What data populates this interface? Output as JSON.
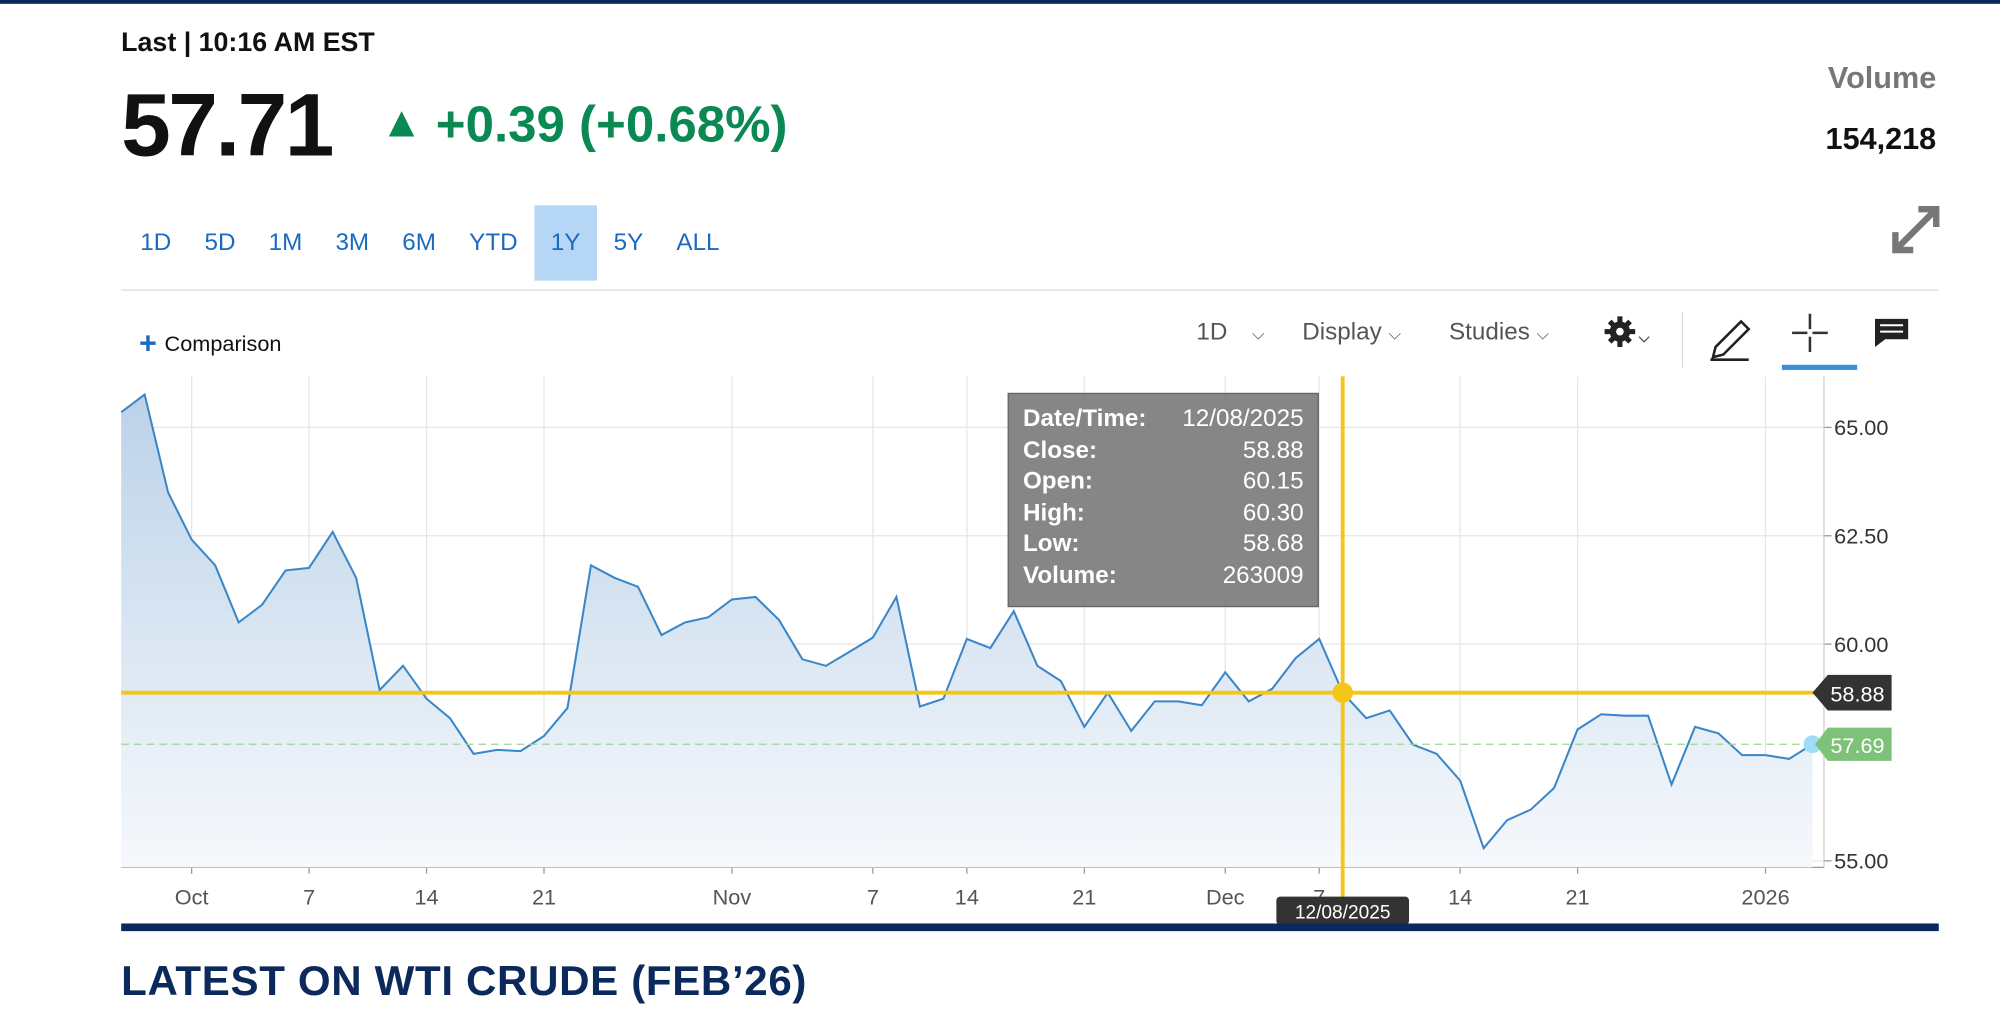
{
  "header": {
    "last_label": "Last",
    "time": "10:16 AM EST",
    "price": "57.71",
    "change": "+0.39 (+0.68%)",
    "volume_label": "Volume",
    "volume": "154,218"
  },
  "ranges": {
    "items": [
      "1D",
      "5D",
      "1M",
      "3M",
      "6M",
      "YTD",
      "1Y",
      "5Y",
      "ALL"
    ],
    "selected": 6
  },
  "toolbar": {
    "comparison": "Comparison",
    "interval": "1D",
    "display": "Display",
    "studies": "Studies"
  },
  "tooltip": {
    "rows": [
      [
        "Date/Time:",
        "12/08/2025"
      ],
      [
        "Close:",
        "58.88"
      ],
      [
        "Open:",
        "60.15"
      ],
      [
        "High:",
        "60.30"
      ],
      [
        "Low:",
        "58.68"
      ],
      [
        "Volume:",
        "263009"
      ]
    ]
  },
  "chart_data": {
    "type": "line",
    "color": "#3a86c8",
    "grid": true,
    "categories": [
      null,
      null,
      null,
      "Oct",
      null,
      null,
      null,
      null,
      "7",
      null,
      null,
      null,
      null,
      "14",
      null,
      null,
      null,
      null,
      "21",
      null,
      null,
      null,
      null,
      null,
      null,
      null,
      "Nov",
      null,
      null,
      null,
      null,
      null,
      "7",
      null,
      null,
      null,
      "14",
      null,
      null,
      null,
      null,
      "21",
      null,
      null,
      null,
      null,
      null,
      "Dec",
      null,
      null,
      null,
      "7",
      null,
      null,
      null,
      null,
      null,
      "14",
      null,
      null,
      null,
      null,
      "21",
      null,
      null,
      null,
      null,
      null,
      null,
      null,
      "2026",
      null,
      null
    ],
    "values": [
      65.35,
      65.76,
      63.5,
      62.41,
      61.82,
      60.5,
      60.91,
      61.7,
      61.76,
      62.59,
      61.53,
      58.94,
      59.5,
      58.74,
      58.29,
      57.47,
      57.56,
      57.53,
      57.88,
      58.53,
      61.82,
      61.53,
      61.32,
      60.21,
      60.5,
      60.62,
      61.03,
      61.09,
      60.56,
      59.65,
      59.5,
      59.82,
      60.15,
      61.09,
      58.56,
      58.74,
      60.12,
      59.91,
      60.76,
      59.5,
      59.15,
      58.09,
      58.88,
      58.0,
      58.68,
      58.68,
      58.59,
      59.35,
      58.68,
      58.97,
      59.68,
      60.12,
      58.88,
      58.29,
      58.47,
      57.68,
      57.47,
      56.85,
      55.29,
      55.94,
      56.18,
      56.68,
      58.03,
      58.38,
      58.35,
      58.35,
      56.76,
      58.09,
      57.94,
      57.44,
      57.44,
      57.35,
      57.69
    ],
    "ylim": [
      54.85,
      66.18
    ],
    "yticks": [
      {
        "value": 55,
        "label": "55.00"
      },
      {
        "value": 60,
        "label": "60.00"
      },
      {
        "value": 62.5,
        "label": "62.50"
      },
      {
        "value": 65,
        "label": "65.00"
      }
    ],
    "crosshair_value": 58.88
  },
  "footer": {
    "heading": "LATEST ON WTI CRUDE (FEB’26)"
  }
}
